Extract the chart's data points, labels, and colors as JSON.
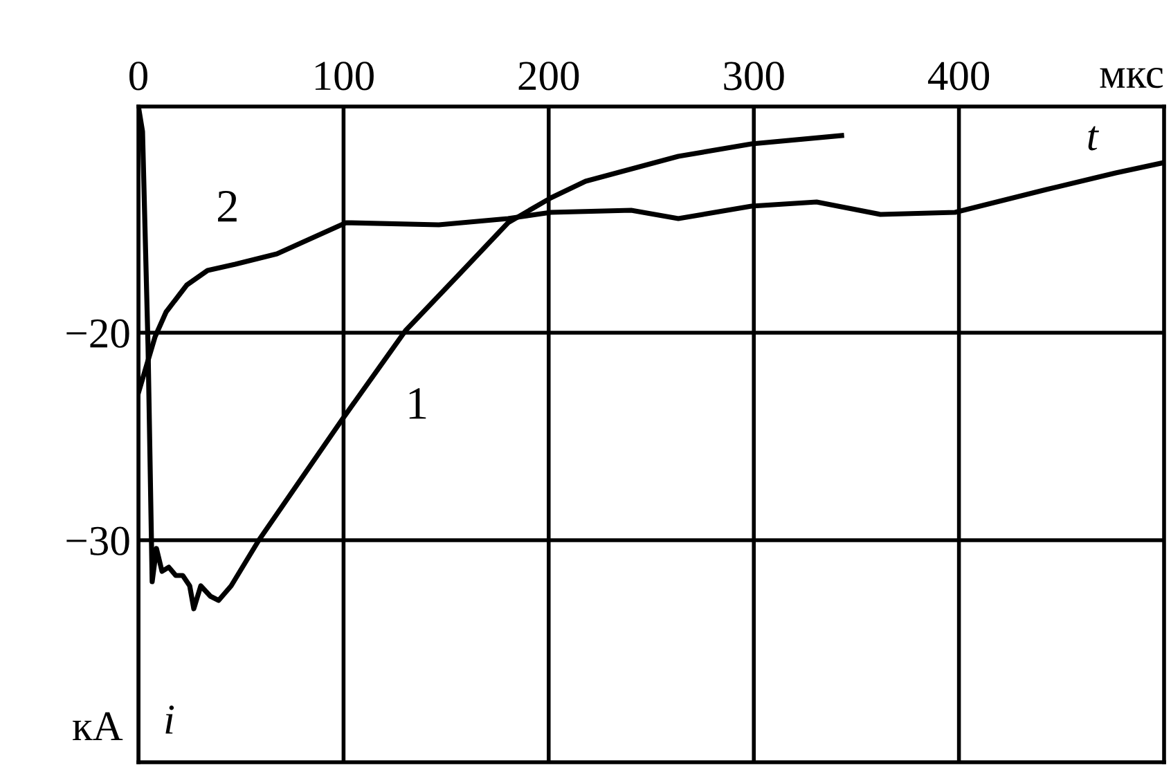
{
  "chart_data": {
    "type": "line",
    "xlabel": "мкс",
    "ylabel": "кА",
    "xlim": [
      0,
      500
    ],
    "ylim": [
      -40.7,
      -9.1
    ],
    "xticks": [
      0,
      100,
      200,
      300,
      400
    ],
    "yticks": [
      -20,
      -30
    ],
    "grid": true,
    "line_style": "solid",
    "marker": "none",
    "series": [
      {
        "name": "1",
        "color": "#000000",
        "x": [
          0,
          2,
          4.7,
          6.7,
          8.8,
          11.5,
          14.8,
          18.2,
          21.6,
          25,
          27,
          30.4,
          35.1,
          39.1,
          45.2,
          58.7,
          99.2,
          130.2,
          157.2,
          180.2,
          201.1,
          218,
          263.2,
          298.9,
          342.8
        ],
        "values": [
          -9.1,
          -10.3,
          -20.7,
          -32.0,
          -30.4,
          -31.5,
          -31.3,
          -31.7,
          -31.7,
          -32.2,
          -33.3,
          -32.2,
          -32.7,
          -32.9,
          -32.2,
          -30,
          -24.2,
          -19.9,
          -17.1,
          -14.7,
          -13.5,
          -12.7,
          -11.5,
          -10.9,
          -10.5
        ]
      },
      {
        "name": "2",
        "color": "#000000",
        "x": [
          0,
          8.1,
          13.5,
          23.6,
          33.7,
          47.2,
          67.5,
          87.7,
          101.2,
          146.4,
          180.2,
          201.1,
          240.2,
          263.2,
          298.9,
          330.6,
          361.7,
          398.1,
          442.6,
          476.4,
          500
        ],
        "values": [
          -22.9,
          -20.2,
          -19,
          -17.7,
          -17,
          -16.7,
          -16.2,
          -15.3,
          -14.7,
          -14.8,
          -14.5,
          -14.2,
          -14.1,
          -14.5,
          -13.9,
          -13.7,
          -14.3,
          -14.2,
          -13.1,
          -12.3,
          -11.8
        ]
      }
    ],
    "annotations": [
      "t",
      "i"
    ]
  }
}
